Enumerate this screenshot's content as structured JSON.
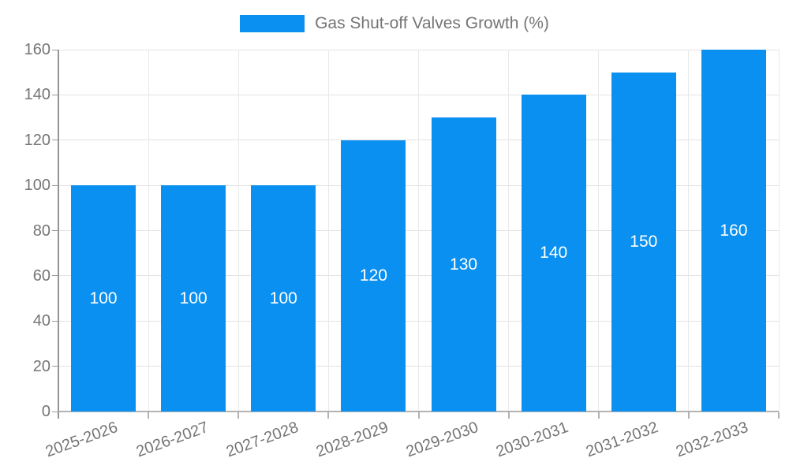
{
  "chart_data": {
    "type": "bar",
    "title": "",
    "legend": "Gas Shut-off Valves Growth (%)",
    "legend_position": "top-center",
    "categories": [
      "2025-2026",
      "2026-2027",
      "2027-2028",
      "2028-2029",
      "2029-2030",
      "2030-2031",
      "2031-2032",
      "2032-2033"
    ],
    "values": [
      100,
      100,
      100,
      120,
      130,
      140,
      150,
      160
    ],
    "value_labels": [
      "100",
      "100",
      "100",
      "120",
      "130",
      "140",
      "150",
      "160"
    ],
    "y_tick_labels": [
      "0",
      "20",
      "40",
      "60",
      "80",
      "100",
      "120",
      "140",
      "160"
    ],
    "xlabel": "",
    "ylabel": "",
    "ylim": [
      0,
      160
    ],
    "ytick_step": 20,
    "grid": true,
    "bar_color": "#0a90f0",
    "value_label_color": "#ffffff",
    "tick_label_color": "#757575",
    "gridline_color": "#e3e3e3",
    "axis_color": "#9a9a9a"
  }
}
